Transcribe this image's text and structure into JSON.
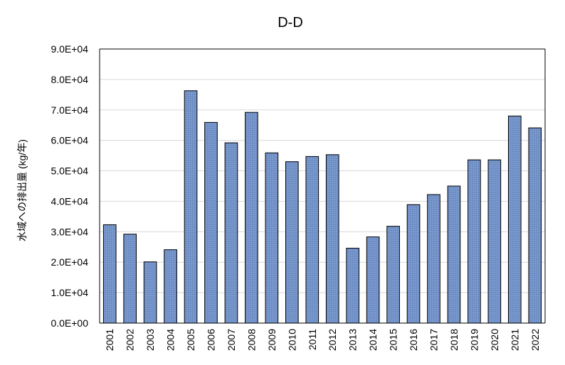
{
  "chart_data": {
    "type": "bar",
    "title": "D-D",
    "xlabel": "",
    "ylabel": "水域への排出量 (kg/年)",
    "categories": [
      "2001",
      "2002",
      "2003",
      "2004",
      "2005",
      "2006",
      "2007",
      "2008",
      "2009",
      "2010",
      "2011",
      "2012",
      "2013",
      "2014",
      "2015",
      "2016",
      "2017",
      "2018",
      "2019",
      "2020",
      "2021",
      "2022"
    ],
    "values": [
      32300,
      29200,
      20100,
      24100,
      76300,
      65900,
      59200,
      69200,
      55900,
      53000,
      54700,
      55300,
      24600,
      28300,
      31800,
      38900,
      42200,
      45000,
      53600,
      53600,
      68000,
      64100
    ],
    "ylim": [
      0,
      90000
    ],
    "yticks": [
      0,
      10000,
      20000,
      30000,
      40000,
      50000,
      60000,
      70000,
      80000,
      90000
    ],
    "ytick_labels": [
      "0.0E+00",
      "1.0E+04",
      "2.0E+04",
      "3.0E+04",
      "4.0E+04",
      "5.0E+04",
      "6.0E+04",
      "7.0E+04",
      "8.0E+04",
      "9.0E+04"
    ],
    "grid": true,
    "legend": "none",
    "bar_color": "#7090c8",
    "bar_edge_color": "#000000",
    "grid_color": "#d9d9d9"
  }
}
